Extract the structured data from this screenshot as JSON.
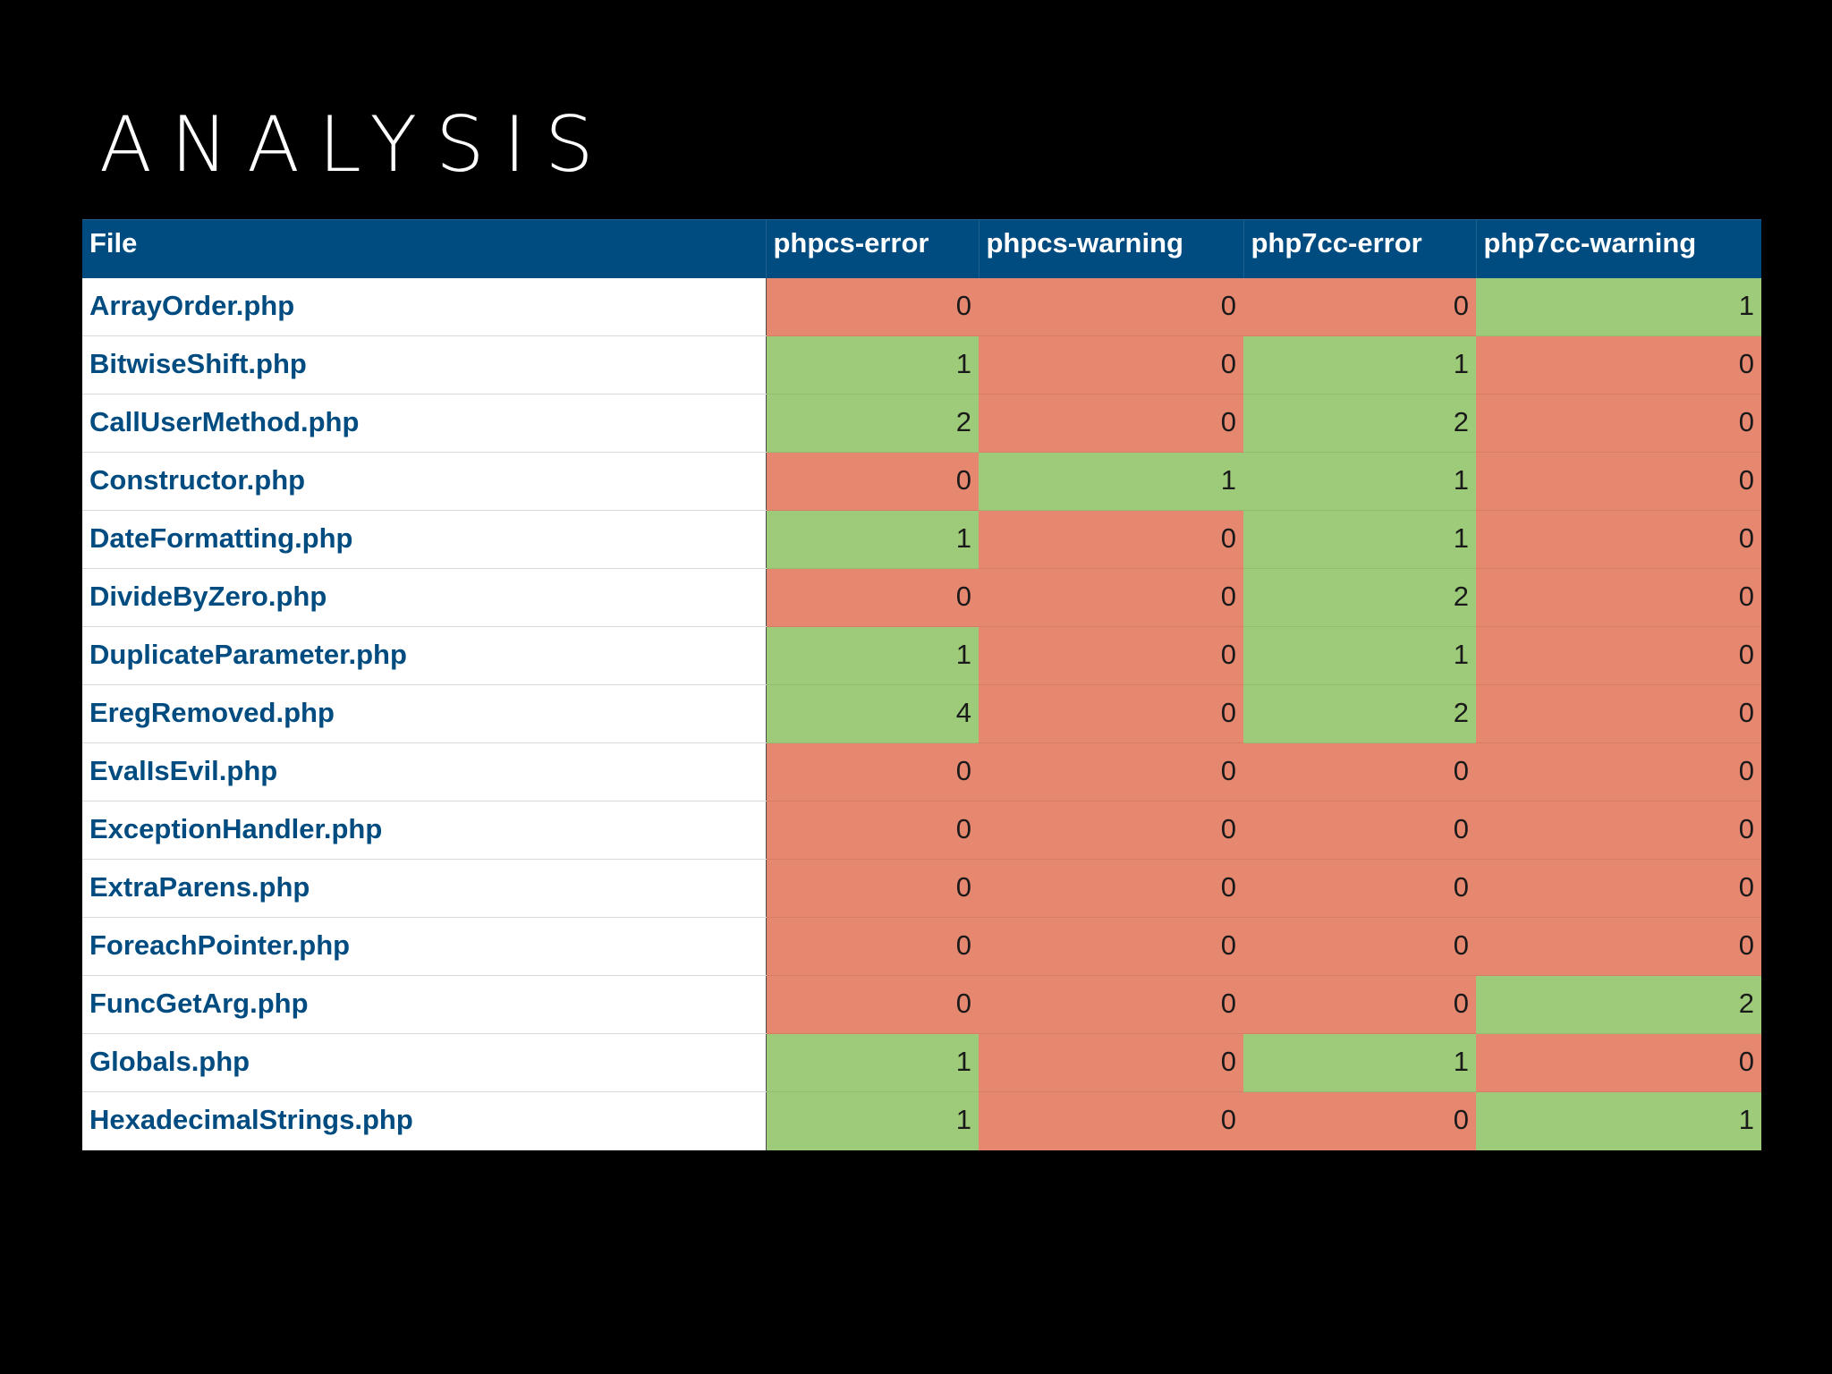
{
  "title": "ANALYSIS",
  "colors": {
    "background": "#000000",
    "header_bg": "#004c80",
    "file_text": "#004c80",
    "zero_cell": "#e6876f",
    "nonzero_cell": "#9ecb7a"
  },
  "table": {
    "columns": [
      "File",
      "phpcs-error",
      "phpcs-warning",
      "php7cc-error",
      "php7cc-warning"
    ],
    "rows": [
      {
        "file": "ArrayOrder.php",
        "values": [
          0,
          0,
          0,
          1
        ]
      },
      {
        "file": "BitwiseShift.php",
        "values": [
          1,
          0,
          1,
          0
        ]
      },
      {
        "file": "CallUserMethod.php",
        "values": [
          2,
          0,
          2,
          0
        ]
      },
      {
        "file": "Constructor.php",
        "values": [
          0,
          1,
          1,
          0
        ]
      },
      {
        "file": "DateFormatting.php",
        "values": [
          1,
          0,
          1,
          0
        ]
      },
      {
        "file": "DivideByZero.php",
        "values": [
          0,
          0,
          2,
          0
        ]
      },
      {
        "file": "DuplicateParameter.php",
        "values": [
          1,
          0,
          1,
          0
        ]
      },
      {
        "file": "EregRemoved.php",
        "values": [
          4,
          0,
          2,
          0
        ]
      },
      {
        "file": "EvalIsEvil.php",
        "values": [
          0,
          0,
          0,
          0
        ]
      },
      {
        "file": "ExceptionHandler.php",
        "values": [
          0,
          0,
          0,
          0
        ]
      },
      {
        "file": "ExtraParens.php",
        "values": [
          0,
          0,
          0,
          0
        ]
      },
      {
        "file": "ForeachPointer.php",
        "values": [
          0,
          0,
          0,
          0
        ]
      },
      {
        "file": "FuncGetArg.php",
        "values": [
          0,
          0,
          0,
          2
        ]
      },
      {
        "file": "Globals.php",
        "values": [
          1,
          0,
          1,
          0
        ]
      },
      {
        "file": "HexadecimalStrings.php",
        "values": [
          1,
          0,
          0,
          1
        ]
      }
    ]
  }
}
